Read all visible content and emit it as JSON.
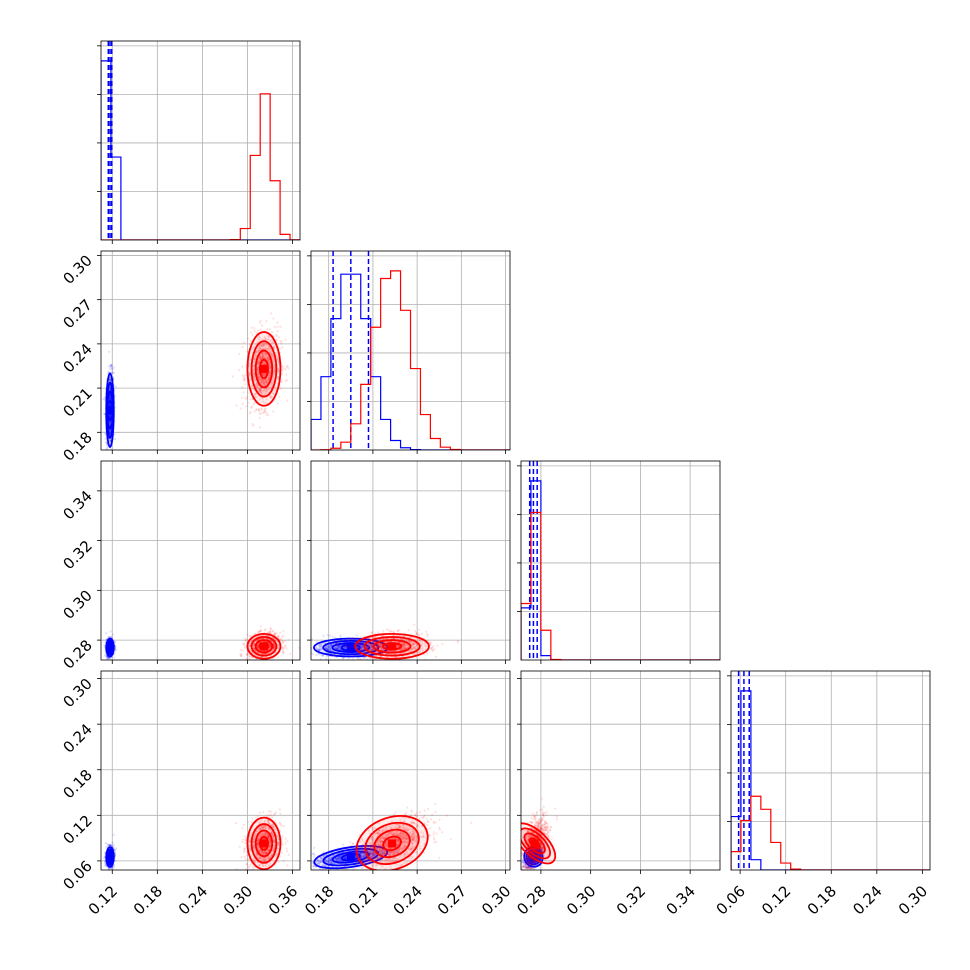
{
  "chart_data": {
    "type": "corner",
    "grid": true,
    "colors": {
      "blue": "#0000ff",
      "red": "#ff0000"
    },
    "series": [
      {
        "color": "#0000ff",
        "params": [
          {
            "mean": 0.117,
            "std": 0.0025,
            "quantiles": [
              0.1147,
              0.117,
              0.1193
            ]
          },
          {
            "mean": 0.195,
            "std": 0.0125,
            "quantiles": [
              0.183,
              0.195,
              0.207
            ]
          },
          {
            "mean": 0.277,
            "std": 0.0018,
            "quantiles": [
              0.2755,
              0.277,
              0.2785
            ]
          },
          {
            "mean": 0.065,
            "std": 0.0065,
            "quantiles": [
              0.058,
              0.065,
              0.072
            ]
          }
        ]
      },
      {
        "color": "#ff0000",
        "params": [
          {
            "mean": 0.322,
            "std": 0.011
          },
          {
            "mean": 0.223,
            "std": 0.0125
          },
          {
            "mean": 0.2775,
            "std": 0.0025
          },
          {
            "mean": 0.083,
            "std": 0.017
          }
        ]
      }
    ],
    "axes": [
      {
        "lim": [
          0.105,
          0.37
        ],
        "ticks": [
          0.12,
          0.18,
          0.24,
          0.3,
          0.36
        ],
        "tick_labels": [
          "0.12",
          "0.18",
          "0.24",
          "0.30",
          "0.36"
        ]
      },
      {
        "lim": [
          0.168,
          0.303
        ],
        "ticks": [
          0.18,
          0.21,
          0.24,
          0.27,
          0.3
        ],
        "tick_labels": [
          "0.18",
          "0.21",
          "0.24",
          "0.27",
          "0.30"
        ]
      },
      {
        "lim": [
          0.272,
          0.352
        ],
        "ticks": [
          0.28,
          0.3,
          0.32,
          0.34
        ],
        "tick_labels": [
          "0.28",
          "0.30",
          "0.32",
          "0.34"
        ]
      },
      {
        "lim": [
          0.048,
          0.31
        ],
        "ticks": [
          0.06,
          0.12,
          0.18,
          0.24,
          0.3
        ],
        "tick_labels": [
          "0.06",
          "0.12",
          "0.18",
          "0.24",
          "0.30"
        ]
      }
    ]
  }
}
